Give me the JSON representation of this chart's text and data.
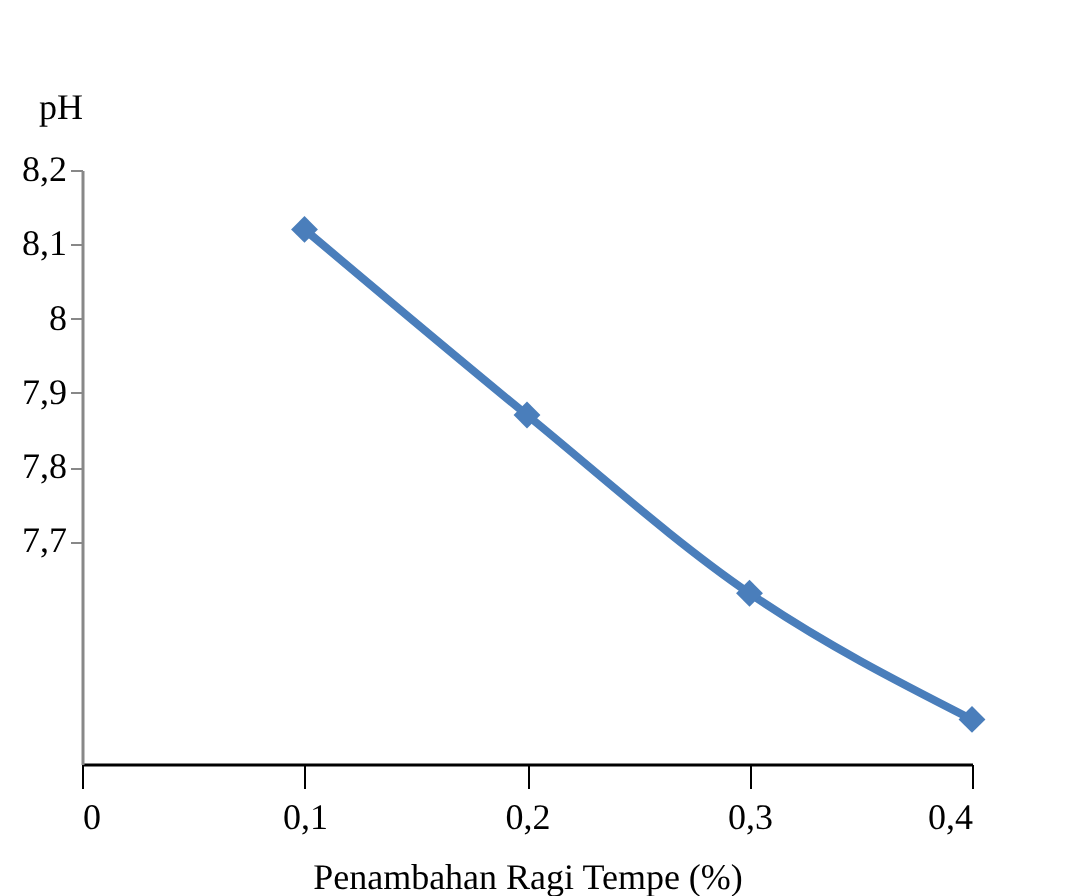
{
  "chart_data": {
    "type": "line",
    "xlabel": "Penambahan Ragi Tempe (%)",
    "ylabel": "pH",
    "x": [
      0.1,
      0.2,
      0.3,
      0.4
    ],
    "series": [
      {
        "color": "#4a7ebb",
        "values": [
          8.12,
          7.87,
          7.63,
          7.46
        ]
      }
    ],
    "xlim": [
      0,
      0.4
    ],
    "xticks": [
      0,
      {
        "value": 0.1,
        "label": "0,1"
      },
      {
        "value": 0.2,
        "label": "0,2"
      },
      {
        "value": 0.3,
        "label": "0,3"
      },
      {
        "value": 0.4,
        "label": "0,4"
      }
    ],
    "ylim": [
      7.4,
      8.2
    ],
    "yticks": [
      {
        "value": 7.7,
        "label": "7,7"
      },
      {
        "value": 7.8,
        "label": "7,8"
      },
      {
        "value": 7.9,
        "label": "7,9"
      },
      8,
      {
        "value": 8.1,
        "label": "8,1"
      },
      {
        "value": 8.2,
        "label": "8,2"
      }
    ],
    "grid": false,
    "marker": "diamond",
    "line_style": "solid",
    "legend": false
  }
}
